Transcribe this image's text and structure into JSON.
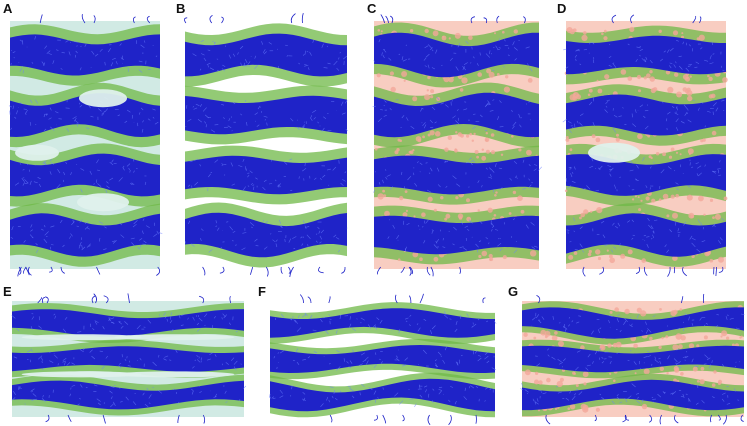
{
  "figure": {
    "panels": [
      {
        "label": "A",
        "background": "#c9e6df",
        "headgroup": "#6fb847",
        "tail": "#1f23c8",
        "accent": ""
      },
      {
        "label": "B",
        "background": "#ffffff",
        "headgroup": "#6fb847",
        "tail": "#1f23c8",
        "accent": ""
      },
      {
        "label": "C",
        "background": "#f7c4b6",
        "headgroup": "#6fb847",
        "tail": "#1f23c8",
        "accent": "#f3a89a"
      },
      {
        "label": "D",
        "background": "#f7c4b6",
        "headgroup": "#6fb847",
        "tail": "#1f23c8",
        "accent": "#f3a89a"
      },
      {
        "label": "E",
        "background": "#c9e6df",
        "headgroup": "#6fb847",
        "tail": "#1f23c8",
        "accent": ""
      },
      {
        "label": "F",
        "background": "#ffffff",
        "headgroup": "#6fb847",
        "tail": "#1f23c8",
        "accent": ""
      },
      {
        "label": "G",
        "background": "#f7c4b6",
        "headgroup": "#6fb847",
        "tail": "#1f23c8",
        "accent": "#f3a89a"
      }
    ]
  }
}
